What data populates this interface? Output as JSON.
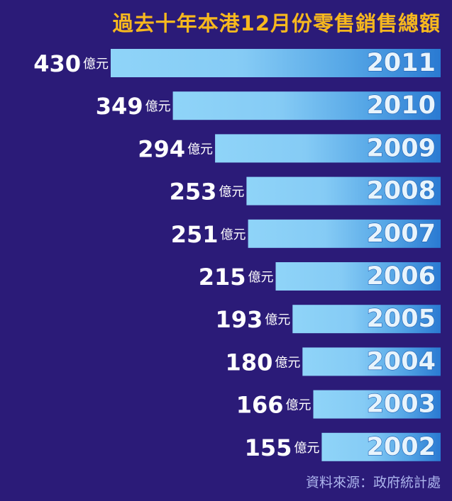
{
  "chart_data": {
    "type": "bar",
    "orientation": "horizontal",
    "title": "過去十年本港12月份零售銷售總額",
    "source": "資料來源：政府統計處",
    "unit": "億元",
    "categories": [
      "2011",
      "2010",
      "2009",
      "2008",
      "2007",
      "2006",
      "2005",
      "2004",
      "2003",
      "2002"
    ],
    "values": [
      430,
      349,
      294,
      253,
      251,
      215,
      193,
      180,
      166,
      155
    ],
    "colors": {
      "background": "#2b1b78",
      "bar_light": "#8fd4f8",
      "bar_dark": "#2a7ad2",
      "title": "#f7b81e",
      "value_text": "#ffffff",
      "year_text": "#e8f4fc"
    }
  }
}
